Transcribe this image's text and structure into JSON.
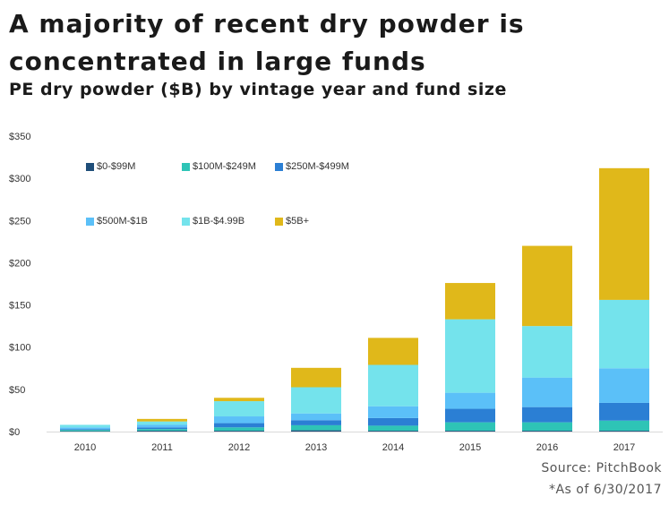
{
  "header": {
    "title": "A majority of recent dry powder is concentrated in large funds",
    "subtitle": "PE dry powder ($B) by vintage year and fund size"
  },
  "footer": {
    "source": "Source: PitchBook",
    "note": "*As of 6/30/2017"
  },
  "chart_data": {
    "type": "bar",
    "stacked": true,
    "categories": [
      "2010",
      "2011",
      "2012",
      "2013",
      "2014",
      "2015",
      "2016",
      "2017"
    ],
    "ylim": [
      0,
      350
    ],
    "yticks": [
      0,
      50,
      100,
      150,
      200,
      250,
      300,
      350
    ],
    "ytick_labels": [
      "$0",
      "$50",
      "$100",
      "$150",
      "$200",
      "$250",
      "$300",
      "$350"
    ],
    "grid": false,
    "legend_position": "top-left",
    "series": [
      {
        "name": "$0-$99M",
        "color": "#1f4e79",
        "values": [
          0.5,
          1,
          1,
          1.5,
          1,
          1,
          1,
          1
        ]
      },
      {
        "name": "$100M-$249M",
        "color": "#2ec4b6",
        "values": [
          1.5,
          2,
          4,
          6,
          6,
          10,
          10,
          12
        ]
      },
      {
        "name": "$250M-$499M",
        "color": "#2b7fd4",
        "values": [
          1,
          2,
          5,
          6,
          9,
          16,
          18,
          21
        ]
      },
      {
        "name": "$500M-$1B",
        "color": "#5bc0f8",
        "values": [
          2,
          3,
          8,
          8,
          14,
          19,
          35,
          41
        ]
      },
      {
        "name": "$1B-$4.99B",
        "color": "#74e3ec",
        "values": [
          3,
          4,
          18,
          31,
          49,
          87,
          61,
          81
        ]
      },
      {
        "name": "$5B+",
        "color": "#e0b81a",
        "values": [
          0,
          3,
          4,
          23,
          32,
          43,
          95,
          156
        ]
      }
    ]
  }
}
